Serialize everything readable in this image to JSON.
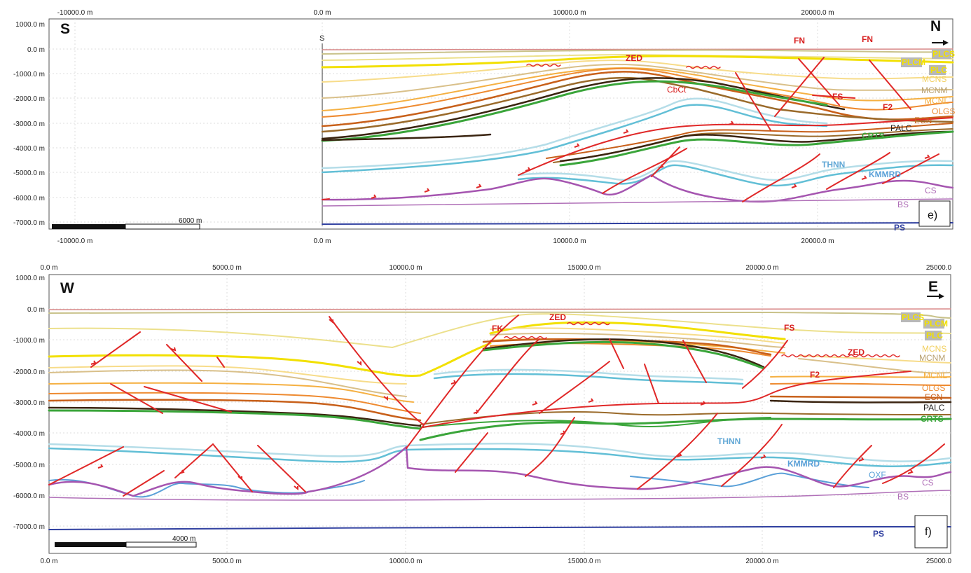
{
  "panels": [
    {
      "id": "e",
      "panel_label": "e)",
      "left_orient": "S",
      "right_orient": "N",
      "section_marker": "S",
      "top_ticks": [
        "-10000.0 m",
        "0.0 m",
        "10000.0 m",
        "20000.0 m"
      ],
      "bottom_ticks": [
        "-10000.0 m",
        "0.0 m",
        "10000.0 m",
        "20000.0 m"
      ],
      "y_ticks": [
        "1000.0 m",
        "0.0 m",
        "-1000.0 m",
        "-2000.0 m",
        "-3000.0 m",
        "-4000.0 m",
        "-5000.0 m",
        "-6000.0 m",
        "-7000.0 m"
      ],
      "scale_label": "6000 m",
      "labels": {
        "zed": "ZED",
        "cbct": "CbCt",
        "fn1": "FN",
        "fn2": "FN",
        "fs": "FS",
        "f2": "F2",
        "plcs": "PLCS",
        "plcm": "PLCM",
        "plcm_r": "PLCM",
        "plc": "PLC",
        "mcns": "MCNS",
        "mcnm": "MCNM",
        "mcnl": "MCNL",
        "olgs": "OLGS",
        "ecn": "ECN",
        "palc": "PALC",
        "crts": "CRTS",
        "thnn": "THNN",
        "kmmrd": "KMMRD",
        "cs": "CS",
        "bs": "BS",
        "ps": "PS"
      }
    },
    {
      "id": "f",
      "panel_label": "f)",
      "left_orient": "W",
      "right_orient": "E",
      "top_ticks": [
        "0.0 m",
        "5000.0 m",
        "10000.0 m",
        "15000.0 m",
        "20000.0 m",
        "25000.0"
      ],
      "bottom_ticks": [
        "0.0 m",
        "5000.0 m",
        "10000.0 m",
        "15000.0 m",
        "20000.0 m",
        "25000.0"
      ],
      "y_ticks": [
        "1000.0 m",
        "0.0 m",
        "-1000.0 m",
        "-2000.0 m",
        "-3000.0 m",
        "-4000.0 m",
        "-5000.0 m",
        "-6000.0 m",
        "-7000.0 m"
      ],
      "scale_label": "4000 m",
      "labels": {
        "zed": "ZED",
        "zed2": "ZED",
        "fk": "FK",
        "fs": "FS",
        "f2": "F2",
        "plcs": "PLCS",
        "plcm": "PLCM",
        "plc": "PLC",
        "mcns": "MCNS",
        "mcnm": "MCNM",
        "mcnl": "MCNL",
        "olgs": "OLGS",
        "ecn": "ECN",
        "palc": "PALC",
        "crts": "CRTS",
        "thnn": "THNN",
        "kmmrd": "KMMRD",
        "oxf": "OXF",
        "cs": "CS",
        "bs": "BS",
        "ps": "PS"
      }
    }
  ],
  "colors": {
    "topo": "#d98a8a",
    "plcs": "#c9c28a",
    "plcm": "#f2e000",
    "plc": "#ece08c",
    "mcns": "#f7dc8a",
    "mcnm": "#d9c08a",
    "mcnl": "#f5b042",
    "olgs": "#ee8a30",
    "ecn": "#c8601a",
    "brown": "#9a6a2a",
    "palc": "#3a2410",
    "crts": "#3aa53a",
    "thnn_light": "#b5dde8",
    "thnn": "#62bfd6",
    "kmmrd": "#5aa0d8",
    "salt": "#a555b0",
    "bs": "#b070b8",
    "ps": "#3040a0",
    "fault": "#e02828",
    "label_red": "#d81e1e",
    "label_yellow_box": "#b8b8b8"
  }
}
